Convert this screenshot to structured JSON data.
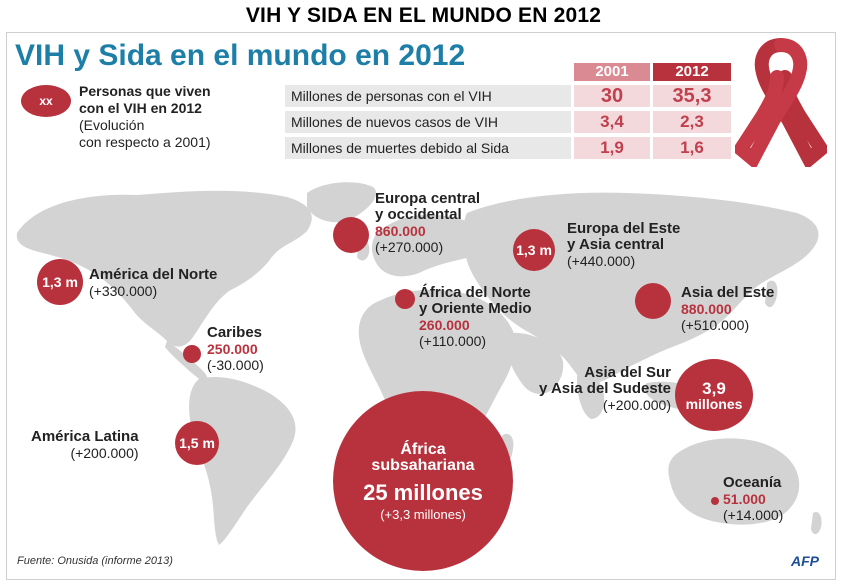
{
  "page_title": "VIH Y SIDA EN EL MUNDO EN 2012",
  "infographic": {
    "title": "VIH y Sida en el mundo en 2012",
    "legend": {
      "bubble_label": "xx",
      "line1": "Personas que viven",
      "line2": "con el VIH en 2012",
      "line3": "(Evolución",
      "line4": "con respecto a 2001)"
    },
    "table": {
      "col_2001": "2001",
      "col_2012": "2012",
      "rows": [
        {
          "label": "Millones de personas con el VIH",
          "v2001": "30",
          "v2012": "35,3"
        },
        {
          "label": "Millones de nuevos casos de VIH",
          "v2001": "3,4",
          "v2012": "2,3"
        },
        {
          "label": "Millones de muertes debido al Sida",
          "v2001": "1,9",
          "v2012": "1,6"
        }
      ]
    },
    "regions": {
      "north_america": {
        "name": "América del Norte",
        "bubble": "1,3 m",
        "change": "(+330.000)"
      },
      "caribbean": {
        "name": "Caribes",
        "value": "250.000",
        "change": "(-30.000)"
      },
      "latin_america": {
        "name": "América Latina",
        "bubble": "1,5 m",
        "change": "(+200.000)"
      },
      "west_europe": {
        "name_l1": "Europa central",
        "name_l2": "y occidental",
        "value": "860.000",
        "change": "(+270.000)"
      },
      "east_europe": {
        "name_l1": "Europa del Este",
        "name_l2": "y Asia central",
        "bubble": "1,3 m",
        "change": "(+440.000)"
      },
      "north_africa": {
        "name_l1": "África del Norte",
        "name_l2": "y Oriente Medio",
        "value": "260.000",
        "change": "(+110.000)"
      },
      "east_asia": {
        "name": "Asia del Este",
        "value": "880.000",
        "change": "(+510.000)"
      },
      "south_asia": {
        "name_l1": "Asia del Sur",
        "name_l2": "y Asia del Sudeste",
        "bubble_l1": "3,9",
        "bubble_l2": "millones",
        "change": "(+200.000)"
      },
      "sub_saharan": {
        "name_l1": "África",
        "name_l2": "subsahariana",
        "value": "25 millones",
        "change": "(+3,3 millones)"
      },
      "oceania": {
        "name": "Oceanía",
        "value": "51.000",
        "change": "(+14.000)"
      }
    },
    "source": "Fuente: Onusida (informe 2013)",
    "agency": "AFP"
  },
  "colors": {
    "accent": "#b8323e",
    "title_blue": "#1d7ea8",
    "map": "#d3d3d3"
  }
}
